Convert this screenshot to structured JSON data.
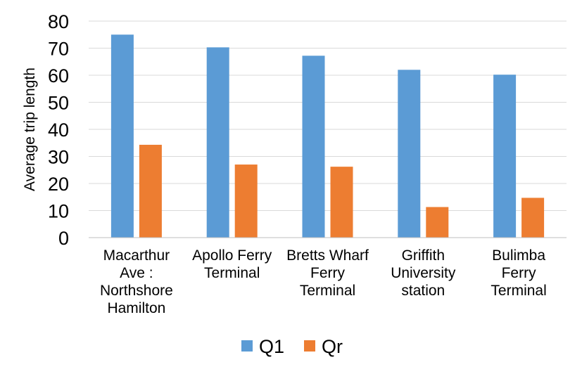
{
  "chart_data": {
    "type": "bar",
    "ylabel": "Average trip length",
    "xlabel": "",
    "ylim": [
      0,
      80
    ],
    "yticks": [
      0,
      10,
      20,
      30,
      40,
      50,
      60,
      70,
      80
    ],
    "grid": true,
    "legend_position": "bottom",
    "categories": [
      [
        "Macarthur",
        "Ave :",
        "Northshore",
        "Hamilton"
      ],
      [
        "Apollo Ferry",
        "Terminal"
      ],
      [
        "Bretts Wharf",
        "Ferry",
        "Terminal"
      ],
      [
        "Griffith",
        "University",
        "station"
      ],
      [
        "Bulimba",
        "Ferry",
        "Terminal"
      ]
    ],
    "series": [
      {
        "name": "Q1",
        "color": "#5b9bd5",
        "values": [
          75,
          70.3,
          67.2,
          62,
          60.2
        ]
      },
      {
        "name": "Qr",
        "color": "#ed7d31",
        "values": [
          34.3,
          27,
          26.2,
          11.3,
          14.7
        ]
      }
    ]
  }
}
